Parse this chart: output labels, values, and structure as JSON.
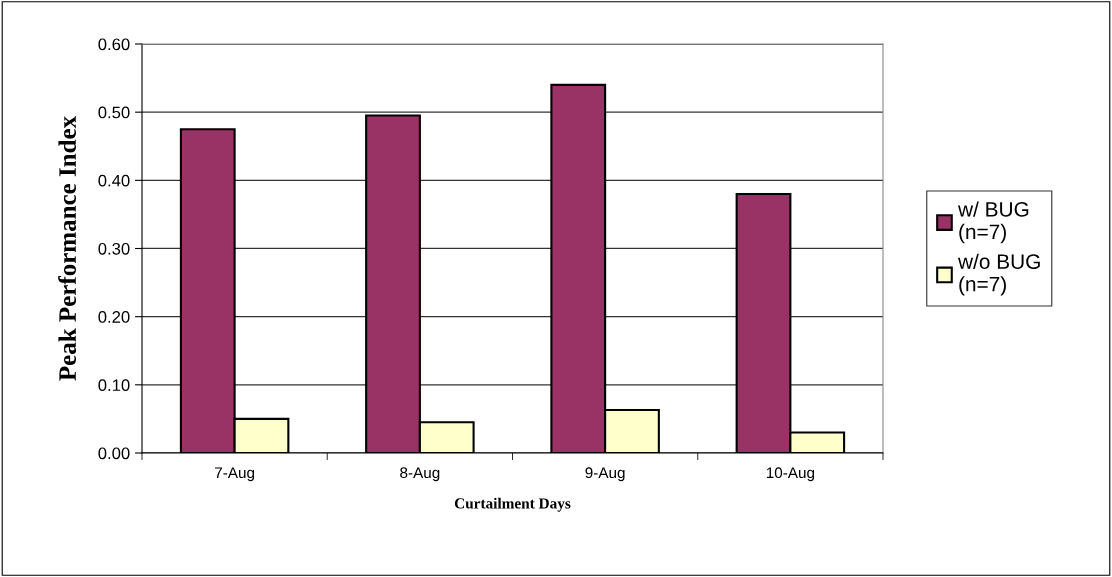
{
  "chart_data": {
    "type": "bar",
    "xlabel": "Curtailment Days",
    "ylabel": "Peak Performance Index",
    "categories": [
      "7-Aug",
      "8-Aug",
      "9-Aug",
      "10-Aug"
    ],
    "series": [
      {
        "name": "w/ BUG\n(n=7)",
        "color": "#993366",
        "values": [
          0.475,
          0.495,
          0.54,
          0.38
        ]
      },
      {
        "name": "w/o BUG\n(n=7)",
        "color": "#ffffcc",
        "values": [
          0.05,
          0.045,
          0.063,
          0.03
        ]
      }
    ],
    "ylim": [
      0,
      0.6
    ],
    "yticks": [
      {
        "value": 0,
        "label": "0.00"
      },
      {
        "value": 0.1,
        "label": "0.10"
      },
      {
        "value": 0.2,
        "label": "0.20"
      },
      {
        "value": 0.3,
        "label": "0.30"
      },
      {
        "value": 0.4,
        "label": "0.40"
      },
      {
        "value": 0.5,
        "label": "0.50"
      },
      {
        "value": 0.6,
        "label": "0.60"
      }
    ],
    "grid": "y",
    "legend": "right"
  }
}
